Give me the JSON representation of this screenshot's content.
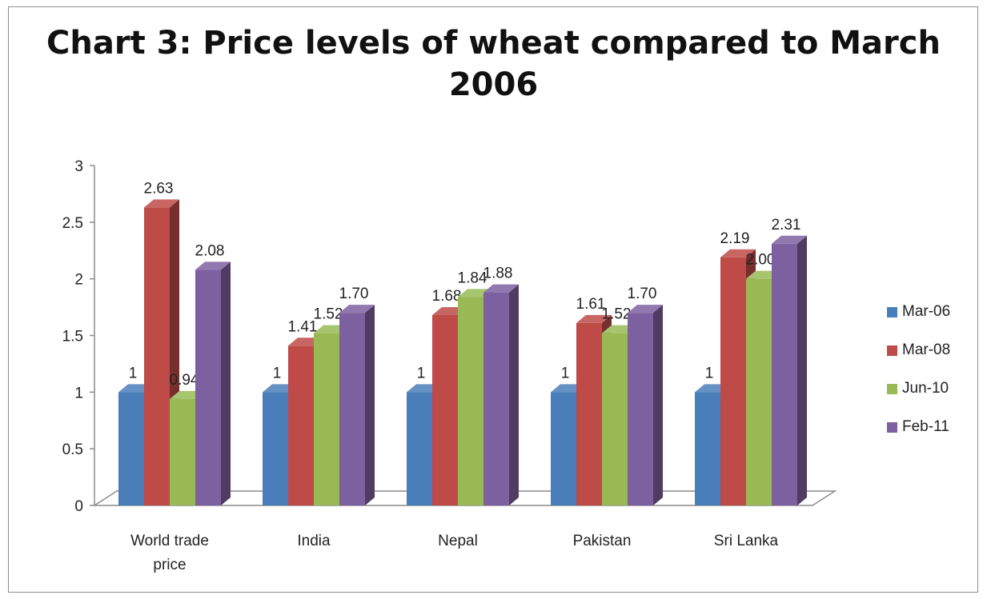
{
  "chart_data": {
    "type": "bar",
    "title_lines": [
      "Chart 3: Price levels of wheat compared to March",
      "2006"
    ],
    "categories": [
      [
        "World trade",
        "price"
      ],
      [
        "India"
      ],
      [
        "Nepal"
      ],
      [
        "Pakistan"
      ],
      [
        "Sri Lanka"
      ]
    ],
    "series": [
      {
        "name": "Mar-06",
        "color": "#4a7ebb",
        "values": [
          1,
          1,
          1,
          1,
          1
        ],
        "labels": [
          "1",
          "1",
          "1",
          "1",
          "1"
        ]
      },
      {
        "name": "Mar-08",
        "color": "#be4b48",
        "values": [
          2.63,
          1.41,
          1.68,
          1.61,
          2.19
        ],
        "labels": [
          "2.63",
          "1.41",
          "1.68",
          "1.61",
          "2.19"
        ]
      },
      {
        "name": "Jun-10",
        "color": "#98b954",
        "values": [
          0.94,
          1.52,
          1.84,
          1.52,
          2.0
        ],
        "labels": [
          "0.94",
          "1.52",
          "1.84",
          "1.52",
          "2.00"
        ]
      },
      {
        "name": "Feb-11",
        "color": "#7d60a0",
        "values": [
          2.08,
          1.7,
          1.88,
          1.7,
          2.31
        ],
        "labels": [
          "2.08",
          "1.70",
          "1.88",
          "1.70",
          "2.31"
        ]
      }
    ],
    "yticks": [
      "0",
      "0.5",
      "1",
      "1.5",
      "2",
      "2.5",
      "3"
    ],
    "ylim": [
      0,
      3
    ],
    "legend_position": "right",
    "grid": false,
    "style": "3d-clustered-column"
  }
}
